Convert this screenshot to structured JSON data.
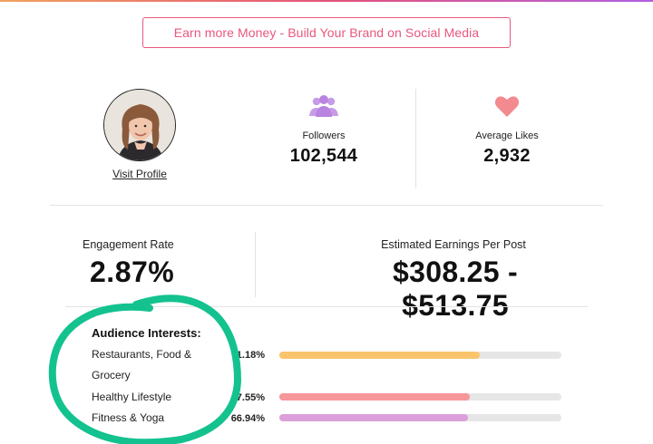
{
  "cta": {
    "label": "Earn more Money - Build Your Brand on Social Media"
  },
  "profile": {
    "visit_label": "Visit Profile"
  },
  "stats": {
    "followers": {
      "label": "Followers",
      "value": "102,544",
      "icon": "people-icon"
    },
    "average_likes": {
      "label": "Average Likes",
      "value": "2,932",
      "icon": "heart-icon"
    }
  },
  "engagement": {
    "label": "Engagement Rate",
    "value": "2.87%"
  },
  "earnings": {
    "label": "Estimated Earnings Per Post",
    "value": "$308.25 - $513.75"
  },
  "interests": {
    "title": "Audience Interests:",
    "items": [
      {
        "label_line1": "Restaurants, Food &",
        "label_line2": "Grocery",
        "percent": "71.18%",
        "value": 0.7118,
        "color": "#f9c46b"
      },
      {
        "label": "Healthy Lifestyle",
        "percent": "67.55%",
        "value": 0.6755,
        "color": "#f7979c"
      },
      {
        "label": "Fitness & Yoga",
        "percent": "66.94%",
        "value": 0.6694,
        "color": "#dba0d9"
      }
    ]
  },
  "colors": {
    "accent": "#e8577f",
    "icon_purple": "#c79be6",
    "icon_pink": "#f28a8f",
    "highlight_green": "#14c28f"
  }
}
